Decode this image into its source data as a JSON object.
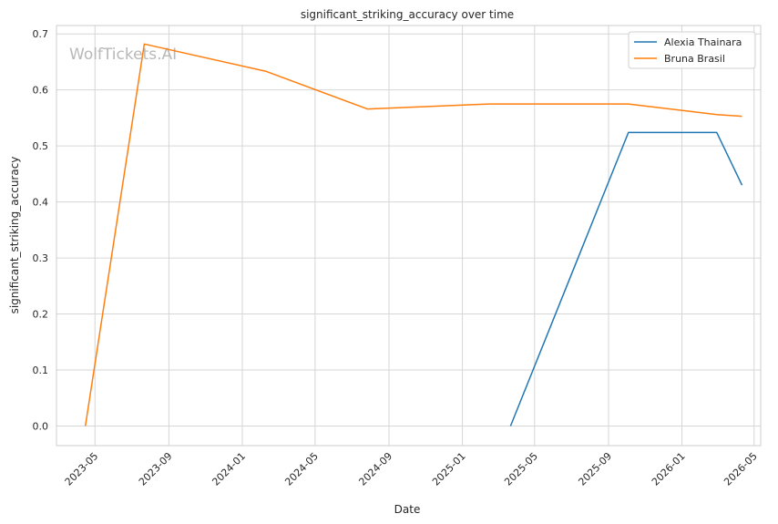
{
  "chart_data": {
    "type": "line",
    "title": "significant_striking_accuracy over time",
    "xlabel": "Date",
    "ylabel": "significant_striking_accuracy",
    "watermark": "WolfTickets.AI",
    "x_ticks": [
      "2023-05",
      "2023-09",
      "2024-01",
      "2024-05",
      "2024-09",
      "2025-01",
      "2025-05",
      "2025-09",
      "2026-01",
      "2026-05"
    ],
    "y_ticks": [
      "0.0",
      "0.1",
      "0.2",
      "0.3",
      "0.4",
      "0.5",
      "0.6",
      "0.7"
    ],
    "xlim": [
      "2023-02-26",
      "2026-05-12"
    ],
    "ylim": [
      -0.035,
      0.715
    ],
    "grid": true,
    "legend_position": "top-right",
    "series": [
      {
        "name": "Alexia Thainara",
        "color": "#1f77b4",
        "points": [
          {
            "x": "2025-03-22",
            "y": 0.0
          },
          {
            "x": "2025-10-04",
            "y": 0.524
          },
          {
            "x": "2026-02-28",
            "y": 0.524
          },
          {
            "x": "2026-04-11",
            "y": 0.43
          }
        ]
      },
      {
        "name": "Bruna Brasil",
        "color": "#ff7f0e",
        "points": [
          {
            "x": "2023-04-15",
            "y": 0.0
          },
          {
            "x": "2023-07-22",
            "y": 0.682
          },
          {
            "x": "2024-02-10",
            "y": 0.633
          },
          {
            "x": "2024-07-27",
            "y": 0.566
          },
          {
            "x": "2025-02-15",
            "y": 0.575
          },
          {
            "x": "2025-10-04",
            "y": 0.575
          },
          {
            "x": "2026-02-28",
            "y": 0.556
          },
          {
            "x": "2026-04-11",
            "y": 0.553
          }
        ]
      }
    ]
  }
}
